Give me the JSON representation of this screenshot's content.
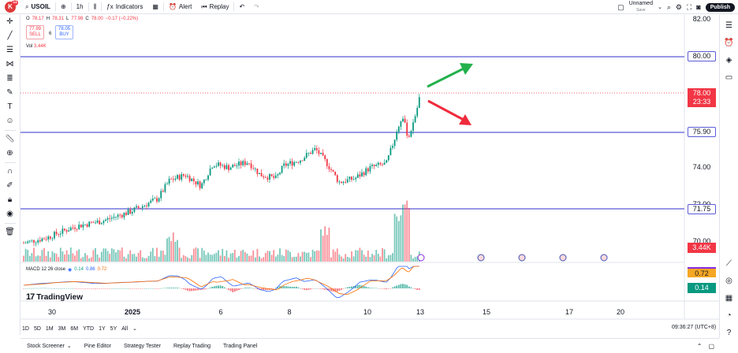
{
  "toolbar": {
    "logo_letter": "K",
    "logo_badge": "11",
    "symbol": "USOIL",
    "interval": "1h",
    "indicators_label": "Indicators",
    "alert_label": "Alert",
    "replay_label": "Replay",
    "layout_name": "Unnamed",
    "layout_sub": "Save",
    "publish_label": "Publish"
  },
  "legend": {
    "o_label": "O",
    "o": "78.17",
    "h_label": "H",
    "h": "78.31",
    "l_label": "L",
    "l": "77.98",
    "c_label": "C",
    "c": "78.00",
    "change": "−0.17 (−0.22%)",
    "sell_price": "77.99",
    "sell_label": "SELL",
    "spread": "6",
    "buy_price": "78.05",
    "buy_label": "BUY",
    "vol_label": "Vol",
    "vol_value": "3.44K",
    "macd_label": "MACD 12 26 close",
    "macd_v1": "0.14",
    "macd_v2": "0.86",
    "macd_v3": "0.72"
  },
  "price_axis": {
    "ticks": [
      "82.00",
      "74.00",
      "72.00",
      "70.00"
    ],
    "line_80": "80.00",
    "line_7590": "75.90",
    "line_7175": "71.75",
    "current_price": "78.00",
    "countdown": "23:33",
    "vol_tag": "3.44K",
    "macd_tag_signal": "0.72",
    "macd_tag_macd": "0.14"
  },
  "time_axis": {
    "labels": [
      {
        "text": "30",
        "bold": false
      },
      {
        "text": "2025",
        "bold": true
      },
      {
        "text": "6",
        "bold": false
      },
      {
        "text": "8",
        "bold": false
      },
      {
        "text": "10",
        "bold": false
      },
      {
        "text": "13",
        "bold": false
      },
      {
        "text": "15",
        "bold": false
      },
      {
        "text": "17",
        "bold": false
      },
      {
        "text": "20",
        "bold": false
      }
    ]
  },
  "ranges": [
    "1D",
    "5D",
    "1M",
    "3M",
    "6M",
    "YTD",
    "1Y",
    "5Y",
    "All"
  ],
  "clock": "09:36:27 (UTC+8)",
  "bottom_panel": [
    "Stock Screener",
    "Pine Editor",
    "Strategy Tester",
    "Replay Trading",
    "Trading Panel"
  ],
  "brand": "TradingView",
  "colors": {
    "up": "#089981",
    "down": "#f23645",
    "hline": "#5b5bd6",
    "arrow_up": "#22b14c",
    "arrow_down": "#ef2b3c",
    "macd": "#2962ff",
    "signal": "#ff6d00"
  },
  "chart_data": {
    "type": "candlestick",
    "y_range": [
      69.5,
      82.2
    ],
    "horizontal_levels": [
      80.0,
      75.9,
      71.75
    ],
    "last_close": 78.0,
    "icons": [
      "calendar-event-icon",
      "flag-us-icon"
    ]
  }
}
